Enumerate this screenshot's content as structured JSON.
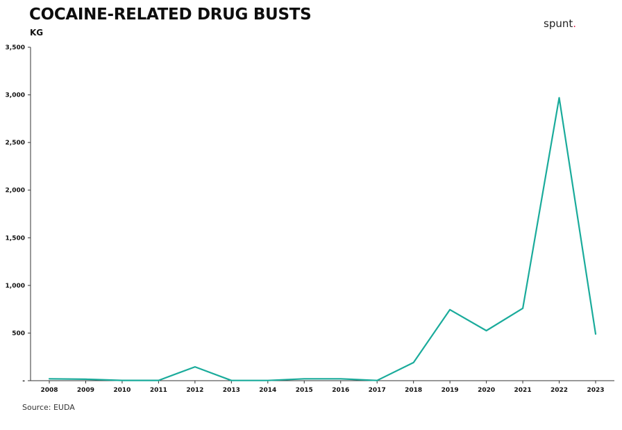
{
  "header": {
    "title": "COCAINE-RELATED DRUG BUSTS",
    "subtitle": "KG",
    "brand_text": "spunt",
    "brand_dot": "."
  },
  "footer": {
    "source": "Source: EUDA"
  },
  "colors": {
    "line": "#1aab9b",
    "axis": "#333333",
    "brand_dot": "#e0224d"
  },
  "chart_data": {
    "type": "line",
    "title": "COCAINE-RELATED DRUG BUSTS",
    "subtitle": "KG",
    "categories": [
      "2008",
      "2009",
      "2010",
      "2011",
      "2012",
      "2013",
      "2014",
      "2015",
      "2016",
      "2017",
      "2018",
      "2019",
      "2020",
      "2021",
      "2022",
      "2023"
    ],
    "series": [
      {
        "values": [
          20,
          15,
          3,
          3,
          145,
          2,
          2,
          20,
          20,
          2,
          190,
          745,
          525,
          760,
          2970,
          490
        ]
      }
    ],
    "y_ticks": [
      "-",
      "500",
      "1,000",
      "1,500",
      "2,000",
      "2,500",
      "3,000",
      "3,500"
    ],
    "y_tick_values": [
      0,
      500,
      1000,
      1500,
      2000,
      2500,
      3000,
      3500
    ],
    "ylim": [
      0,
      3500
    ],
    "grid": false
  }
}
